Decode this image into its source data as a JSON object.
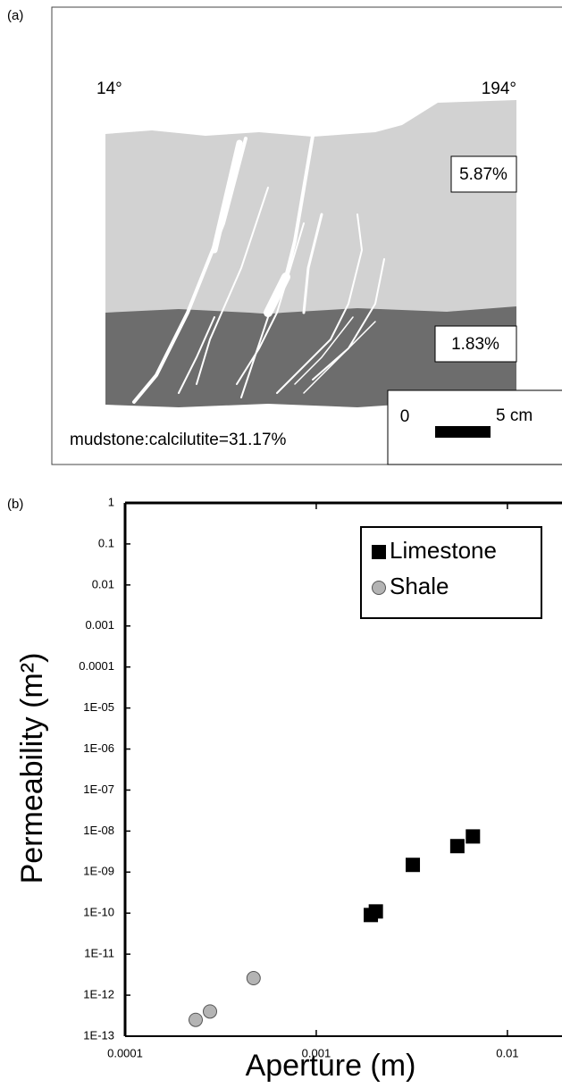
{
  "panel_a": {
    "label": "(a)",
    "left_angle": "14°",
    "right_angle": "194°",
    "upper_percent": "5.87%",
    "lower_percent": "1.83%",
    "scale_start": "0",
    "scale_end": "5 cm",
    "ratio": "mudstone:calcilutite=31.17%"
  },
  "chart_data": {
    "type": "scatter",
    "panel_label": "(b)",
    "x_label": "Aperture (m)",
    "y_label": "Permeability (m²)",
    "log_x": true,
    "log_y": true,
    "legend": "top-right",
    "xlim": [
      0.0001,
      0.0193
    ],
    "xticks": [
      0.0001,
      0.001,
      0.01
    ],
    "ylim": [
      1e-13,
      1
    ],
    "yticks": [
      1,
      0.1,
      0.01,
      0.001,
      0.0001,
      {
        "value": 1e-05,
        "label": "1E-05"
      },
      {
        "value": 1e-06,
        "label": "1E-06"
      },
      {
        "value": 1e-07,
        "label": "1E-07"
      },
      {
        "value": 1e-08,
        "label": "1E-08"
      },
      {
        "value": 1e-09,
        "label": "1E-09"
      },
      {
        "value": 1e-10,
        "label": "1E-10"
      },
      {
        "value": 1e-11,
        "label": "1E-11"
      },
      {
        "value": 1e-12,
        "label": "1E-12"
      },
      {
        "value": 1e-13,
        "label": "1E-13"
      }
    ],
    "series": [
      {
        "name": "Limestone",
        "color": "#000000",
        "marker": "square",
        "x": [
          0.00193,
          0.00205,
          0.0032,
          0.00547,
          0.0066
        ],
        "values": [
          9e-11,
          1.1e-10,
          1.5e-09,
          4.3e-09,
          7.4e-09
        ]
      },
      {
        "name": "Shale",
        "color": "#b4b4b4",
        "marker": "circle",
        "x": [
          0.000234,
          0.000278,
          0.00047
        ],
        "values": [
          2.5e-13,
          4e-13,
          2.6e-12
        ]
      }
    ]
  }
}
